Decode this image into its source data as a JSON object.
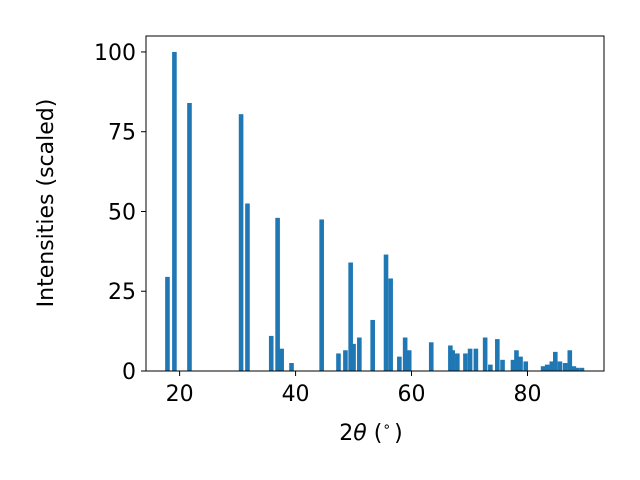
{
  "chart_data": {
    "type": "bar",
    "title": "",
    "xlabel_pre": "2",
    "xlabel_theta": "θ",
    "xlabel_post": " (",
    "xlabel_degree": "∘",
    "xlabel_close": ")",
    "ylabel": "Intensities (scaled)",
    "xlim": [
      14.2,
      93.2
    ],
    "ylim": [
      0,
      105
    ],
    "xticks": [
      20,
      40,
      60,
      80
    ],
    "yticks": [
      0,
      25,
      50,
      75,
      100
    ],
    "grid": false,
    "bar_color": "#1f77b4",
    "x": [
      17.9,
      19.1,
      21.7,
      30.6,
      31.7,
      35.8,
      36.9,
      37.6,
      39.3,
      44.5,
      47.4,
      48.6,
      49.5,
      50.0,
      51.0,
      53.3,
      55.6,
      56.4,
      57.9,
      58.9,
      59.6,
      63.4,
      66.7,
      67.1,
      67.9,
      69.3,
      70.1,
      71.1,
      72.7,
      73.6,
      74.8,
      75.7,
      77.5,
      78.1,
      78.8,
      79.7,
      82.7,
      83.4,
      84.2,
      84.8,
      85.6,
      86.5,
      87.3,
      88.0,
      88.6,
      89.4
    ],
    "values": [
      29.5,
      100,
      84,
      80.5,
      52.5,
      11,
      48,
      7,
      2.5,
      47.5,
      5.5,
      6.5,
      34,
      8.5,
      10.5,
      16,
      36.5,
      29,
      4.5,
      10.5,
      6.5,
      9,
      8,
      6.5,
      5.5,
      5.5,
      7,
      7,
      10.5,
      2,
      10,
      3.5,
      3.5,
      6.5,
      4.5,
      3,
      1.5,
      2,
      3,
      6,
      3,
      2.5,
      6.5,
      1.5,
      1,
      1
    ]
  }
}
